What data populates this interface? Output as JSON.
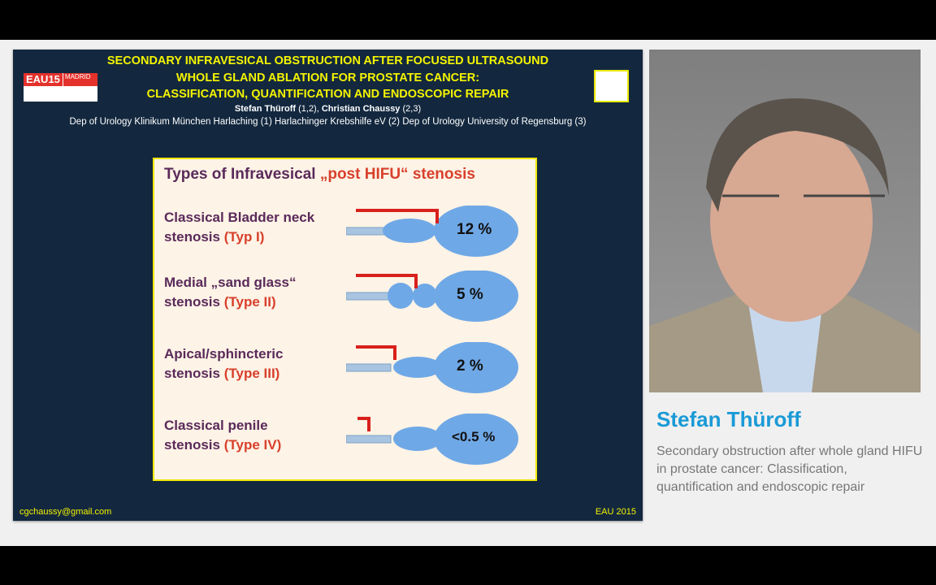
{
  "slide": {
    "title_lines": [
      "SECONDARY INFRAVESICAL OBSTRUCTION AFTER FOCUSED ULTRASOUND",
      "WHOLE GLAND ABLATION FOR PROSTATE CANCER:",
      "CLASSIFICATION, QUANTIFICATION AND ENDOSCOPIC REPAIR"
    ],
    "author1": "Stefan Thüroff",
    "author1_aff": " (1,2), ",
    "author2": "Christian Chaussy",
    "author2_aff": " (2,3)",
    "affiliations": "Dep of Urology Klinikum München Harlaching (1) Harlachinger Krebshilfe eV (2) Dep of Urology University of Regensburg (3)",
    "logo_text": "EAU15",
    "logo_city": "MADRID",
    "box_title": "Types of Infravesical ",
    "box_title_red": "„post HIFU“ stenosis",
    "types": [
      {
        "line1": "Classical Bladder neck",
        "line2": "stenosis ",
        "type": "(Typ I)",
        "pct": "12 %"
      },
      {
        "line1": "Medial „sand glass“",
        "line2": "stenosis ",
        "type": "(Type II)",
        "pct": "5 %"
      },
      {
        "line1": "Apical/sphincteric",
        "line2": "stenosis ",
        "type": "(Type III)",
        "pct": "2 %"
      },
      {
        "line1": "Classical penile",
        "line2": "stenosis ",
        "type": "(Type IV)",
        "pct": "<0.5 %"
      }
    ],
    "footer_email": "cgchaussy@gmail.com",
    "footer_event": "EAU 2015"
  },
  "speaker": {
    "name": "Stefan Thüroff",
    "description": "Secondary obstruction after whole gland HIFU in prostate cancer: Classification, quantification and endoscopic repair"
  },
  "colors": {
    "title": "#f4f400",
    "slide_bg": "#13283f",
    "accent": "#1a9ad6",
    "red": "#d8402c"
  }
}
